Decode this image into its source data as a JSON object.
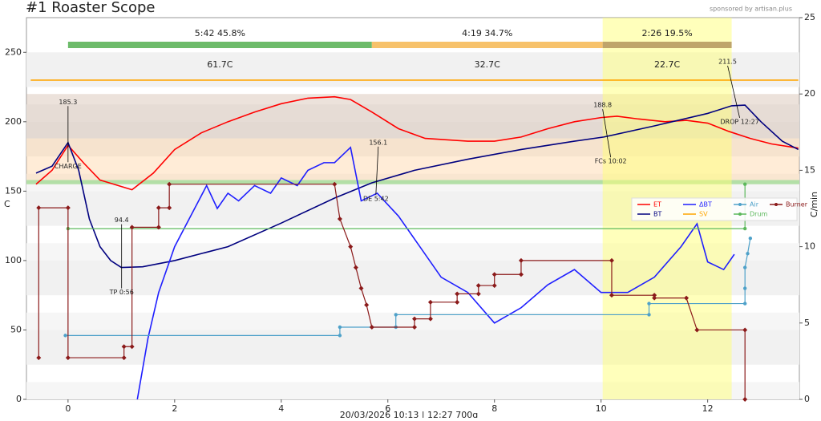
{
  "chart_data": {
    "type": "line",
    "title": "#1 Roaster Scope",
    "subtitle": "sponsored by artisan.plus",
    "footer": "20/03/2026  10:13   |   12:27   700g",
    "ylabel": "C",
    "y2label": "C/min",
    "xlim": [
      -0.78,
      13.72
    ],
    "ylim": [
      0,
      275
    ],
    "y2lim": [
      0,
      25
    ],
    "xticks": [
      0,
      2,
      4,
      6,
      8,
      10,
      12
    ],
    "yticks": [
      0,
      50,
      100,
      150,
      200,
      250
    ],
    "y2ticks": [
      0,
      5,
      10,
      15,
      20,
      25
    ],
    "bands": [
      {
        "from": 155,
        "to": 188,
        "color": "rgba(255,205,150,0.38)"
      },
      {
        "from": 188,
        "to": 220,
        "color": "rgba(205,180,160,0.38)"
      },
      {
        "from": 155,
        "to": 158,
        "color": "rgba(150,220,150,0.7)"
      }
    ],
    "highlight": {
      "from": 10.03,
      "to": 12.45,
      "color": "rgba(255,255,120,0.5)"
    },
    "phases": [
      {
        "label": "5:42  45.8%",
        "temp": "61.7C",
        "start": 0,
        "end": 5.7,
        "color": "#6dbb6a"
      },
      {
        "label": "4:19  34.7%",
        "temp": "32.7C",
        "start": 5.7,
        "end": 10.03,
        "color": "#f7c26b"
      },
      {
        "label": "2:26  19.5%",
        "temp": "22.7C",
        "start": 10.03,
        "end": 12.45,
        "color": "#bfa56b"
      }
    ],
    "series": [
      {
        "name": "ET",
        "color": "#ff0000",
        "marker": false,
        "x": [
          -0.6,
          -0.3,
          0,
          0.3,
          0.6,
          1.2,
          1.6,
          2,
          2.5,
          3,
          3.5,
          4,
          4.5,
          5,
          5.3,
          5.7,
          6.2,
          6.7,
          7.5,
          8,
          8.5,
          9,
          9.5,
          10,
          10.3,
          10.7,
          11.2,
          11.6,
          12,
          12.4,
          12.8,
          13.2,
          13.7
        ],
        "values": [
          155,
          165,
          183,
          170,
          158,
          151,
          163,
          180,
          192,
          200,
          207,
          213,
          217,
          218,
          216,
          207,
          195,
          188,
          186,
          186,
          189,
          195,
          200,
          203,
          204,
          202,
          200,
          201,
          199,
          193,
          188,
          184,
          181
        ]
      },
      {
        "name": "BT",
        "color": "#00007f",
        "marker": false,
        "x": [
          -0.6,
          -0.3,
          0,
          0.2,
          0.4,
          0.6,
          0.8,
          1.0,
          1.4,
          2,
          3,
          4,
          5,
          5.7,
          6.5,
          7.5,
          8.5,
          9.5,
          10.05,
          11,
          12,
          12.45,
          12.7,
          13,
          13.4,
          13.7
        ],
        "values": [
          163,
          168,
          185,
          165,
          130,
          110,
          100,
          95,
          95.5,
          100,
          110,
          127,
          145,
          156,
          165,
          173,
          180,
          186,
          189,
          197,
          206,
          211.5,
          212,
          200,
          186,
          180
        ]
      },
      {
        "name": "ΔBT",
        "color": "#1f1fff",
        "marker": false,
        "axis": "y2",
        "x": [
          1.3,
          1.5,
          1.7,
          2.0,
          2.3,
          2.6,
          2.8,
          3,
          3.2,
          3.5,
          3.8,
          4,
          4.3,
          4.5,
          4.8,
          5,
          5.3,
          5.5,
          5.8,
          6.2,
          6.6,
          7,
          7.5,
          8,
          8.5,
          9,
          9.5,
          10,
          10.5,
          11,
          11.5,
          11.8,
          12,
          12.3,
          12.5
        ],
        "values": [
          0,
          4,
          7,
          10,
          12,
          14,
          12.5,
          13.5,
          13,
          14,
          13.5,
          14.5,
          14,
          15,
          15.5,
          15.5,
          16.5,
          13,
          13.5,
          12,
          10,
          8,
          7,
          5,
          6,
          7.5,
          8.5,
          7,
          7,
          8,
          10,
          11.5,
          9,
          8.5,
          9.5
        ]
      },
      {
        "name": "SV",
        "color": "#ffa500",
        "marker": false,
        "x": [
          -0.7,
          13.7
        ],
        "values": [
          230,
          230
        ]
      },
      {
        "name": "Air",
        "color": "#4ea1c9",
        "marker": true,
        "x": [
          -0.05,
          5.1,
          5.1,
          6.15,
          6.15,
          10.9,
          10.9,
          12.7,
          12.7,
          12.7,
          12.75,
          12.8
        ],
        "values": [
          46,
          46,
          52,
          52,
          61,
          61,
          69,
          69,
          80,
          95,
          105,
          116
        ]
      },
      {
        "name": "Drum",
        "color": "#5cb85c",
        "marker": true,
        "x": [
          0,
          12.7,
          12.7
        ],
        "values": [
          123,
          123,
          155
        ]
      },
      {
        "name": "Burner",
        "color": "#8b1a1a",
        "marker": true,
        "x": [
          -0.55,
          -0.55,
          0,
          0,
          1.05,
          1.05,
          1.2,
          1.2,
          1.7,
          1.7,
          1.9,
          1.9,
          5.0,
          5.1,
          5.3,
          5.4,
          5.5,
          5.6,
          5.7,
          6.5,
          6.5,
          6.8,
          6.8,
          7.3,
          7.3,
          7.7,
          7.7,
          8,
          8,
          8.5,
          8.5,
          10.2,
          10.2,
          11,
          11,
          11.6,
          11.8,
          12.7,
          12.7
        ],
        "values": [
          30,
          138,
          138,
          30,
          30,
          38,
          38,
          124,
          124,
          138,
          138,
          155,
          155,
          130,
          110,
          95,
          80,
          68,
          52,
          52,
          58,
          58,
          70,
          70,
          76,
          76,
          82,
          82,
          90,
          90,
          100,
          100,
          75,
          75,
          73,
          73,
          50,
          50,
          0
        ]
      }
    ],
    "annotations": [
      {
        "value": 185.3,
        "event": "CHARGE",
        "x": 0,
        "y": 185.3
      },
      {
        "value": 94.4,
        "event": "TP 0:56",
        "x": 0.93,
        "y": 94.4
      },
      {
        "value": 156.1,
        "event": "DE 5:42",
        "x": 5.7,
        "y": 156.1
      },
      {
        "value": 188.8,
        "event": "FCs 10:02",
        "x": 10.03,
        "y": 188.8
      },
      {
        "value": 211.5,
        "event": "DROP 12:27",
        "x": 12.45,
        "y": 211.5
      }
    ]
  }
}
